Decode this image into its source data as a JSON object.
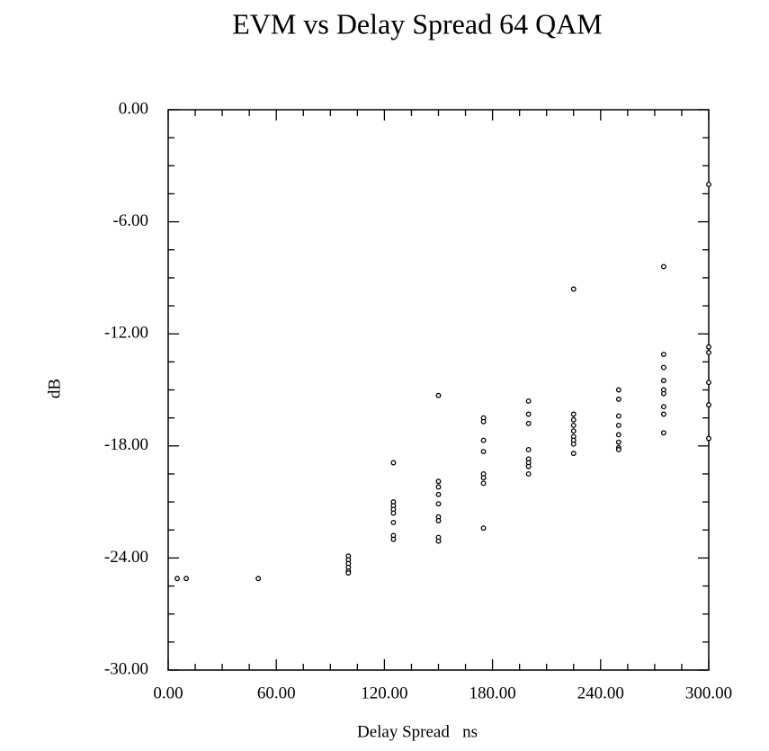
{
  "chart_data": {
    "type": "scatter",
    "title": "EVM vs Delay Spread 64 QAM",
    "xlabel": "Delay Spread   ns",
    "ylabel": "dB",
    "color": "#000000",
    "x": [
      5,
      10,
      50,
      100,
      100,
      100,
      100,
      100,
      100,
      125,
      125,
      125,
      125,
      125,
      125,
      125,
      125,
      150,
      150,
      150,
      150,
      150,
      150,
      150,
      150,
      150,
      175,
      175,
      175,
      175,
      175,
      175,
      175,
      175,
      200,
      200,
      200,
      200,
      200,
      200,
      200,
      200,
      225,
      225,
      225,
      225,
      225,
      225,
      225,
      225,
      225,
      250,
      250,
      250,
      250,
      250,
      250,
      250,
      250,
      275,
      275,
      275,
      275,
      275,
      275,
      275,
      275,
      275,
      300,
      300,
      300,
      300,
      300,
      300
    ],
    "values": [
      -25.1,
      -25.1,
      -25.1,
      -23.9,
      -24.1,
      -24.3,
      -24.5,
      -24.7,
      -24.8,
      -18.9,
      -21.0,
      -21.2,
      -21.4,
      -21.6,
      -22.1,
      -22.8,
      -23.0,
      -15.3,
      -19.9,
      -20.2,
      -20.6,
      -21.1,
      -21.8,
      -22.0,
      -22.9,
      -23.1,
      -16.5,
      -16.7,
      -17.7,
      -18.3,
      -19.5,
      -19.7,
      -20.0,
      -22.4,
      -15.6,
      -16.3,
      -16.8,
      -18.2,
      -18.7,
      -18.9,
      -19.1,
      -19.5,
      -9.6,
      -16.3,
      -16.6,
      -16.9,
      -17.2,
      -17.5,
      -17.7,
      -17.9,
      -18.4,
      -15.0,
      -15.5,
      -16.4,
      -16.9,
      -17.4,
      -17.8,
      -18.1,
      -18.2,
      -8.4,
      -13.1,
      -13.8,
      -14.5,
      -15.0,
      -15.2,
      -15.9,
      -16.3,
      -17.3,
      -4.0,
      -12.7,
      -13.0,
      -14.6,
      -15.8,
      -17.6
    ],
    "xlim": [
      0,
      300
    ],
    "ylim": [
      -30,
      0
    ],
    "xticks": [
      {
        "value": 0,
        "label": "0.00"
      },
      {
        "value": 60,
        "label": "60.00"
      },
      {
        "value": 120,
        "label": "120.00"
      },
      {
        "value": 180,
        "label": "180.00"
      },
      {
        "value": 240,
        "label": "240.00"
      },
      {
        "value": 300,
        "label": "300.00"
      }
    ],
    "yticks": [
      {
        "value": 0,
        "label": "0.00"
      },
      {
        "value": -6,
        "label": "-6.00"
      },
      {
        "value": -12,
        "label": "-12.00"
      },
      {
        "value": -18,
        "label": "-18.00"
      },
      {
        "value": -24,
        "label": "-24.00"
      },
      {
        "value": -30,
        "label": "-30.00"
      }
    ],
    "xminorticks": [
      15,
      30,
      45,
      75,
      90,
      105,
      135,
      150,
      165,
      195,
      210,
      225,
      255,
      270,
      285
    ],
    "yminorticks": [
      -1.5,
      -3,
      -4.5,
      -7.5,
      -9,
      -10.5,
      -13.5,
      -15,
      -16.5,
      -19.5,
      -21,
      -22.5,
      -25.5,
      -27,
      -28.5
    ],
    "grid": false
  }
}
